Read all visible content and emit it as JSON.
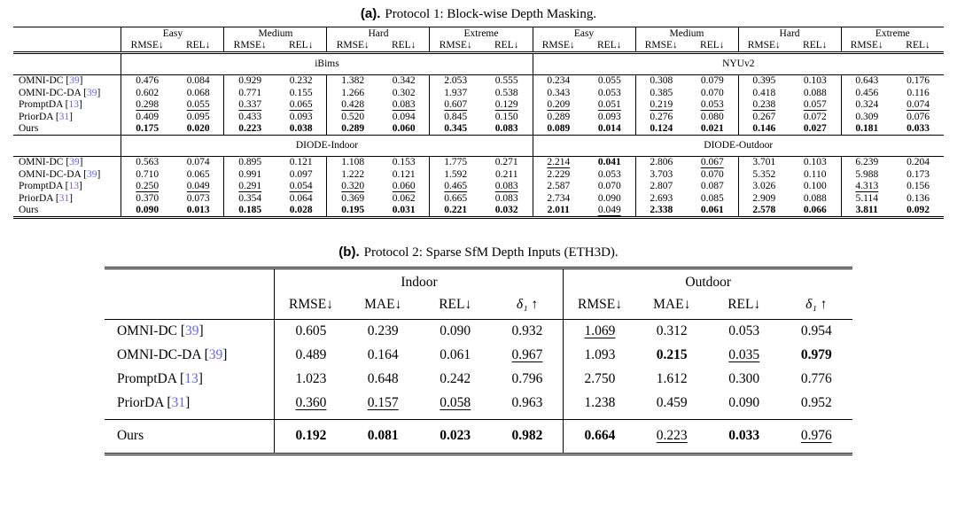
{
  "colors": {
    "citation": "#6464f0",
    "text": "#000000",
    "rule": "#000000"
  },
  "table_a": {
    "caption_label": "(a).",
    "caption_text": "Protocol 1: Block-wise Depth Masking.",
    "groups": [
      "Easy",
      "Medium",
      "Hard",
      "Extreme",
      "Easy",
      "Medium",
      "Hard",
      "Extreme"
    ],
    "metric_pair": [
      "RMSE↓",
      "REL↓"
    ],
    "blocks": [
      {
        "datasets": [
          "iBims",
          "NYUv2"
        ],
        "rows": [
          {
            "name": "OMNI-DC",
            "ref": "39",
            "values": [
              "0.476",
              "0.084",
              "0.929",
              "0.232",
              "1.382",
              "0.342",
              "2.053",
              "0.555",
              "0.234",
              "0.055",
              "0.308",
              "0.079",
              "0.395",
              "0.103",
              "0.643",
              "0.176"
            ],
            "styles": [
              "",
              "",
              "",
              "",
              "",
              "",
              "",
              "",
              "",
              "",
              "",
              "",
              "",
              "",
              "",
              ""
            ]
          },
          {
            "name": "OMNI-DC-DA",
            "ref": "39",
            "values": [
              "0.602",
              "0.068",
              "0.771",
              "0.155",
              "1.266",
              "0.302",
              "1.937",
              "0.538",
              "0.343",
              "0.053",
              "0.385",
              "0.070",
              "0.418",
              "0.088",
              "0.456",
              "0.116"
            ],
            "styles": [
              "",
              "",
              "",
              "",
              "",
              "",
              "",
              "",
              "",
              "",
              "",
              "",
              "",
              "",
              "",
              ""
            ]
          },
          {
            "name": "PromptDA",
            "ref": "13",
            "values": [
              "0.298",
              "0.055",
              "0.337",
              "0.065",
              "0.428",
              "0.083",
              "0.607",
              "0.129",
              "0.209",
              "0.051",
              "0.219",
              "0.053",
              "0.238",
              "0.057",
              "0.324",
              "0.074"
            ],
            "styles": [
              "u",
              "u",
              "u",
              "u",
              "u",
              "u",
              "u",
              "u",
              "u",
              "u",
              "u",
              "u",
              "u",
              "u",
              "",
              "u"
            ]
          },
          {
            "name": "PriorDA",
            "ref": "31",
            "values": [
              "0.409",
              "0.095",
              "0.433",
              "0.093",
              "0.520",
              "0.094",
              "0.845",
              "0.150",
              "0.289",
              "0.093",
              "0.276",
              "0.080",
              "0.267",
              "0.072",
              "0.309",
              "0.076"
            ],
            "styles": [
              "",
              "",
              "",
              "",
              "",
              "",
              "",
              "",
              "",
              "",
              "",
              "",
              "",
              "",
              "u",
              ""
            ]
          },
          {
            "name": "Ours",
            "ref": null,
            "values": [
              "0.175",
              "0.020",
              "0.223",
              "0.038",
              "0.289",
              "0.060",
              "0.345",
              "0.083",
              "0.089",
              "0.014",
              "0.124",
              "0.021",
              "0.146",
              "0.027",
              "0.181",
              "0.033"
            ],
            "styles": [
              "b",
              "b",
              "b",
              "b",
              "b",
              "b",
              "b",
              "b",
              "b",
              "b",
              "b",
              "b",
              "b",
              "b",
              "b",
              "b"
            ]
          }
        ]
      },
      {
        "datasets": [
          "DIODE-Indoor",
          "DIODE-Outdoor"
        ],
        "rows": [
          {
            "name": "OMNI-DC",
            "ref": "39",
            "values": [
              "0.563",
              "0.074",
              "0.895",
              "0.121",
              "1.108",
              "0.153",
              "1.775",
              "0.271",
              "2.214",
              "0.041",
              "2.806",
              "0.067",
              "3.701",
              "0.103",
              "6.239",
              "0.204"
            ],
            "styles": [
              "",
              "",
              "",
              "",
              "",
              "",
              "",
              "",
              "u",
              "b",
              "",
              "u",
              "",
              "",
              "",
              ""
            ]
          },
          {
            "name": "OMNI-DC-DA",
            "ref": "39",
            "values": [
              "0.710",
              "0.065",
              "0.991",
              "0.097",
              "1.222",
              "0.121",
              "1.592",
              "0.211",
              "2.229",
              "0.053",
              "3.703",
              "0.070",
              "5.352",
              "0.110",
              "5.988",
              "0.173"
            ],
            "styles": [
              "",
              "",
              "",
              "",
              "",
              "",
              "",
              "",
              "",
              "",
              "",
              "",
              "",
              "",
              "",
              ""
            ]
          },
          {
            "name": "PromptDA",
            "ref": "13",
            "values": [
              "0.250",
              "0.049",
              "0.291",
              "0.054",
              "0.320",
              "0.060",
              "0.465",
              "0.083",
              "2.587",
              "0.070",
              "2.807",
              "0.087",
              "3.026",
              "0.100",
              "4.313",
              "0.156"
            ],
            "styles": [
              "u",
              "u",
              "u",
              "u",
              "u",
              "u",
              "u",
              "u",
              "",
              "",
              "",
              "",
              "",
              "",
              "u",
              ""
            ]
          },
          {
            "name": "PriorDA",
            "ref": "31",
            "values": [
              "0.370",
              "0.073",
              "0.354",
              "0.064",
              "0.369",
              "0.062",
              "0.665",
              "0.083",
              "2.734",
              "0.090",
              "2.693",
              "0.085",
              "2.909",
              "0.088",
              "5.114",
              "0.136"
            ],
            "styles": [
              "",
              "",
              "",
              "",
              "",
              "",
              "",
              "u",
              "",
              "",
              "u",
              "",
              "u",
              "u",
              "",
              "u"
            ]
          },
          {
            "name": "Ours",
            "ref": null,
            "values": [
              "0.090",
              "0.013",
              "0.185",
              "0.028",
              "0.195",
              "0.031",
              "0.221",
              "0.032",
              "2.011",
              "0.049",
              "2.338",
              "0.061",
              "2.578",
              "0.066",
              "3.811",
              "0.092"
            ],
            "styles": [
              "b",
              "b",
              "b",
              "b",
              "b",
              "b",
              "b",
              "b",
              "b",
              "u",
              "b",
              "b",
              "b",
              "b",
              "b",
              "b"
            ]
          }
        ]
      }
    ]
  },
  "table_b": {
    "caption_label": "(b).",
    "caption_text": "Protocol 2: Sparse SfM Depth Inputs (ETH3D).",
    "groups": [
      "Indoor",
      "Outdoor"
    ],
    "metrics": [
      "RMSE↓",
      "MAE↓",
      "REL↓",
      "δ₁ ↑"
    ],
    "rows": [
      {
        "name": "OMNI-DC",
        "ref": "39",
        "values": [
          "0.605",
          "0.239",
          "0.090",
          "0.932",
          "1.069",
          "0.312",
          "0.053",
          "0.954"
        ],
        "styles": [
          "",
          "",
          "",
          "",
          "u",
          "",
          "",
          ""
        ]
      },
      {
        "name": "OMNI-DC-DA",
        "ref": "39",
        "values": [
          "0.489",
          "0.164",
          "0.061",
          "0.967",
          "1.093",
          "0.215",
          "0.035",
          "0.979"
        ],
        "styles": [
          "",
          "",
          "",
          "u",
          "",
          "b",
          "u",
          "b"
        ]
      },
      {
        "name": "PromptDA",
        "ref": "13",
        "values": [
          "1.023",
          "0.648",
          "0.242",
          "0.796",
          "2.750",
          "1.612",
          "0.300",
          "0.776"
        ],
        "styles": [
          "",
          "",
          "",
          "",
          "",
          "",
          "",
          ""
        ]
      },
      {
        "name": "PriorDA",
        "ref": "31",
        "values": [
          "0.360",
          "0.157",
          "0.058",
          "0.963",
          "1.238",
          "0.459",
          "0.090",
          "0.952"
        ],
        "styles": [
          "u",
          "u",
          "u",
          "",
          "",
          "",
          "",
          ""
        ]
      },
      {
        "name": "Ours",
        "ref": null,
        "values": [
          "0.192",
          "0.081",
          "0.023",
          "0.982",
          "0.664",
          "0.223",
          "0.033",
          "0.976"
        ],
        "styles": [
          "b",
          "b",
          "b",
          "b",
          "b",
          "u",
          "b",
          "u"
        ]
      }
    ]
  }
}
